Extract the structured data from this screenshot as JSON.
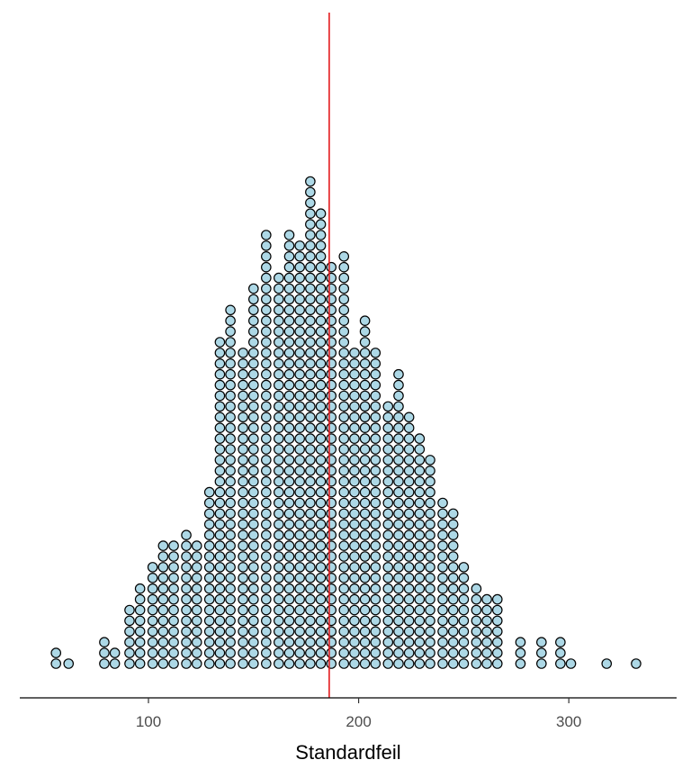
{
  "chart_data": {
    "type": "dotplot",
    "xlabel": "Standardfeil",
    "ylabel": "",
    "xlim": [
      40,
      348
    ],
    "x_ticks": [
      100,
      200,
      300
    ],
    "grid": false,
    "dot_fill": "#add8e6",
    "dot_stroke": "#000000",
    "reference_line": {
      "x": 186,
      "color": "#e41a1c"
    },
    "bins": [
      {
        "x": 56,
        "count": 2
      },
      {
        "x": 62,
        "count": 1
      },
      {
        "x": 79,
        "count": 3
      },
      {
        "x": 84,
        "count": 2
      },
      {
        "x": 91,
        "count": 6
      },
      {
        "x": 96,
        "count": 8
      },
      {
        "x": 102,
        "count": 10
      },
      {
        "x": 107,
        "count": 12
      },
      {
        "x": 112,
        "count": 12
      },
      {
        "x": 118,
        "count": 13
      },
      {
        "x": 123,
        "count": 12
      },
      {
        "x": 129,
        "count": 17
      },
      {
        "x": 134,
        "count": 31
      },
      {
        "x": 139,
        "count": 34
      },
      {
        "x": 145,
        "count": 30
      },
      {
        "x": 150,
        "count": 36
      },
      {
        "x": 156,
        "count": 41
      },
      {
        "x": 162,
        "count": 37
      },
      {
        "x": 167,
        "count": 41
      },
      {
        "x": 172,
        "count": 40
      },
      {
        "x": 177,
        "count": 46
      },
      {
        "x": 182,
        "count": 43
      },
      {
        "x": 187,
        "count": 38
      },
      {
        "x": 193,
        "count": 39
      },
      {
        "x": 198,
        "count": 30
      },
      {
        "x": 203,
        "count": 33
      },
      {
        "x": 208,
        "count": 30
      },
      {
        "x": 214,
        "count": 25
      },
      {
        "x": 219,
        "count": 28
      },
      {
        "x": 224,
        "count": 24
      },
      {
        "x": 229,
        "count": 22
      },
      {
        "x": 234,
        "count": 20
      },
      {
        "x": 240,
        "count": 16
      },
      {
        "x": 245,
        "count": 15
      },
      {
        "x": 250,
        "count": 10
      },
      {
        "x": 256,
        "count": 8
      },
      {
        "x": 261,
        "count": 7
      },
      {
        "x": 266,
        "count": 7
      },
      {
        "x": 277,
        "count": 3
      },
      {
        "x": 287,
        "count": 3
      },
      {
        "x": 296,
        "count": 3
      },
      {
        "x": 301,
        "count": 1
      },
      {
        "x": 318,
        "count": 1
      },
      {
        "x": 332,
        "count": 1
      }
    ]
  }
}
